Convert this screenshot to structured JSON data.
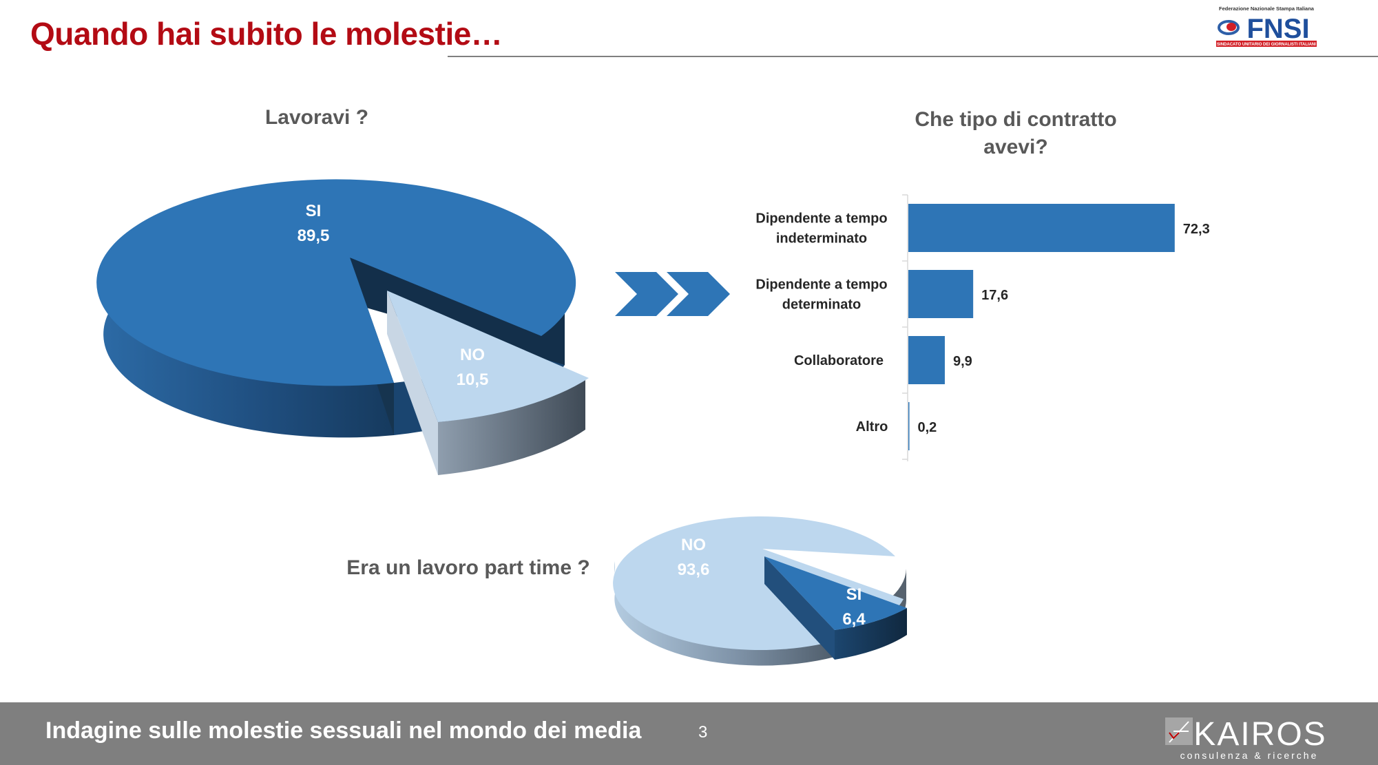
{
  "header": {
    "title": "Quando hai subito le molestie…"
  },
  "logos": {
    "fnsi": {
      "line1": "Federazione Nazionale Stampa Italiana",
      "name": "FNSI",
      "line2": "SINDACATO UNITARIO DEI GIORNALISTI ITALIANI"
    },
    "kairos": {
      "name": "KAIROS",
      "tagline": "consulenza & ricerche"
    }
  },
  "footer": {
    "text": "Indagine sulle molestie sessuali nel mondo dei media",
    "page_number": "3"
  },
  "colors": {
    "dark_blue": "#2e75b6",
    "light_blue": "#bdd7ee",
    "title_red": "#b30b14",
    "footer_gray": "#7f7f7f",
    "text_gray": "#595959"
  },
  "chart_data": [
    {
      "type": "pie",
      "title": "Lavoravi ?",
      "slices": [
        {
          "label": "SI",
          "value": 89.5,
          "value_label": "89,5"
        },
        {
          "label": "NO",
          "value": 10.5,
          "value_label": "10,5"
        }
      ]
    },
    {
      "type": "bar",
      "orientation": "horizontal",
      "title": "Che tipo di contratto avevi?",
      "categories": [
        "Dipendente a tempo indeterminato",
        "Dipendente a tempo determinato",
        "Collaboratore",
        "Altro"
      ],
      "values": [
        72.3,
        17.6,
        9.9,
        0.2
      ],
      "value_labels": [
        "72,3",
        "17,6",
        "9,9",
        "0,2"
      ],
      "xlim": [
        0,
        100
      ]
    },
    {
      "type": "pie",
      "title": "Era un lavoro part time ?",
      "slices": [
        {
          "label": "NO",
          "value": 93.6,
          "value_label": "93,6"
        },
        {
          "label": "SI",
          "value": 6.4,
          "value_label": "6,4"
        }
      ]
    }
  ]
}
